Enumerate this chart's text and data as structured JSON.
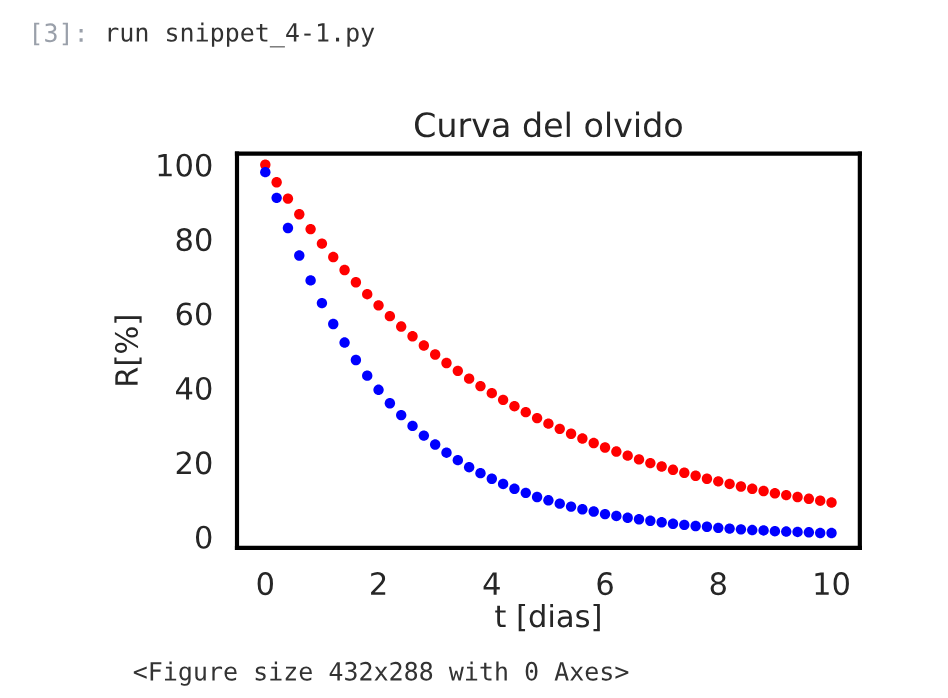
{
  "chart_data": {
    "type": "scatter",
    "title": "Curva del olvido",
    "xlabel": "t [dias]",
    "ylabel": "R[%]",
    "annotations": [
      "[3]:",
      "run snippet_4-1.py",
      "<Figure size 432x288 with 0 Axes>"
    ],
    "x": [
      0,
      0.2,
      0.4,
      0.6,
      0.8,
      1,
      1.2,
      1.4,
      1.6,
      1.8,
      2,
      2.2,
      2.4,
      2.6,
      2.8,
      3,
      3.2,
      3.4,
      3.6,
      3.8,
      4,
      4.2,
      4.4,
      4.6,
      4.8,
      5,
      5.2,
      5.4,
      5.6,
      5.8,
      6,
      6.2,
      6.4,
      6.6,
      6.8,
      7,
      7.2,
      7.4,
      7.6,
      7.8,
      8,
      8.2,
      8.4,
      8.6,
      8.8,
      9,
      9.2,
      9.4,
      9.6,
      9.8,
      10
    ],
    "series": [
      {
        "color": "#ff0000",
        "values": [
          100,
          95.3,
          90.9,
          86.7,
          82.7,
          78.8,
          75.2,
          71.7,
          68.4,
          65.2,
          62.2,
          59.3,
          56.5,
          53.9,
          51.4,
          49.0,
          46.7,
          44.6,
          42.5,
          40.5,
          38.6,
          36.8,
          35.1,
          33.5,
          31.9,
          30.4,
          29.0,
          27.7,
          26.4,
          25.2,
          24.0,
          22.9,
          21.8,
          20.8,
          19.8,
          18.9,
          18.0,
          17.2,
          16.4,
          15.6,
          14.9,
          14.2,
          13.5,
          12.9,
          12.3,
          11.7,
          11.2,
          10.7,
          10.2,
          9.7,
          9.2
        ]
      },
      {
        "color": "#0000ff",
        "values": [
          98,
          91.1,
          83.0,
          75.6,
          68.9,
          62.8,
          57.2,
          52.2,
          47.5,
          43.3,
          39.5,
          35.9,
          32.7,
          29.8,
          27.2,
          24.8,
          22.6,
          20.6,
          18.7,
          17.1,
          15.6,
          14.2,
          12.9,
          11.8,
          10.7,
          9.8,
          8.9,
          8.1,
          7.4,
          6.8,
          6.1,
          5.6,
          5.1,
          4.7,
          4.3,
          3.9,
          3.5,
          3.2,
          2.9,
          2.7,
          2.4,
          2.2,
          2.0,
          1.8,
          1.7,
          1.5,
          1.4,
          1.3,
          1.2,
          1.0,
          1.0
        ]
      }
    ],
    "xlim": [
      -0.5,
      10.5
    ],
    "ylim": [
      -3,
      103
    ],
    "xticks": [
      0,
      2,
      4,
      6,
      8,
      10
    ],
    "yticks": [
      0,
      20,
      40,
      60,
      80,
      100
    ],
    "marker": "circle",
    "grid": false,
    "legend": false
  }
}
